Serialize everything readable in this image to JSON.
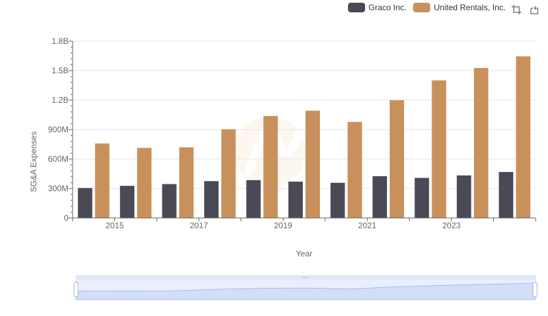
{
  "legend": {
    "items": [
      {
        "label": "Graco Inc.",
        "color": "#4a4a57"
      },
      {
        "label": "United Rentals, Inc.",
        "color": "#c8915b"
      }
    ]
  },
  "toolbox": {
    "icons": [
      "zoom-icon",
      "restore-icon"
    ]
  },
  "chart_data": {
    "type": "bar",
    "categories": [
      "2014",
      "2015",
      "2016",
      "2017",
      "2018",
      "2019",
      "2020",
      "2021",
      "2022",
      "2023",
      "2024"
    ],
    "x_tick_labels": [
      "2015",
      "2017",
      "2019",
      "2021",
      "2023"
    ],
    "series": [
      {
        "name": "Graco Inc.",
        "color": "#4a4a57",
        "values": [
          305000000,
          327000000,
          345000000,
          375000000,
          385000000,
          370000000,
          358000000,
          425000000,
          408000000,
          433000000,
          468000000
        ]
      },
      {
        "name": "United Rentals, Inc.",
        "color": "#c8915b",
        "values": [
          758000000,
          714000000,
          719000000,
          903000000,
          1038000000,
          1092000000,
          978000000,
          1199000000,
          1400000000,
          1527000000,
          1645000000
        ]
      }
    ],
    "ylim": [
      0,
      1800000000
    ],
    "y_ticks": [
      "0",
      "300M",
      "600M",
      "900M",
      "1.2B",
      "1.5B",
      "1.8B"
    ],
    "ylabel": "SG&A Expenses",
    "xlabel": "Year",
    "grid": true,
    "legend_position": "top-right"
  }
}
